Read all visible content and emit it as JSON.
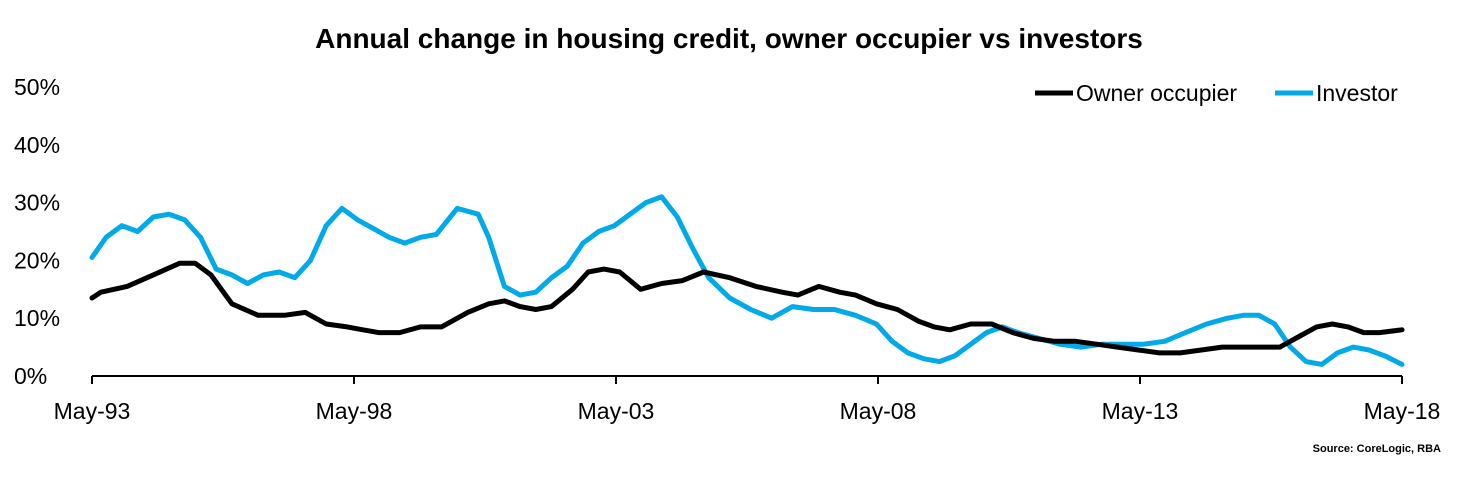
{
  "chart_data": {
    "type": "line",
    "title": "Annual change in housing credit, owner occupier vs investors",
    "source": "Source: CoreLogic, RBA",
    "xlabel": "",
    "ylabel": "",
    "y_ticks": [
      "0%",
      "10%",
      "20%",
      "30%",
      "40%",
      "50%"
    ],
    "y_tick_values": [
      0,
      10,
      20,
      30,
      40,
      50
    ],
    "ylim": [
      0,
      50
    ],
    "x_ticks": [
      "May-93",
      "May-98",
      "May-03",
      "May-08",
      "May-13",
      "May-18"
    ],
    "x_tick_values": [
      1993.33,
      1998.33,
      2003.33,
      2008.33,
      2013.33,
      2018.33
    ],
    "xlim": [
      1993.33,
      2018.33
    ],
    "grid": false,
    "legend": "top-right",
    "series": [
      {
        "name": "Owner occupier",
        "color": "#000000",
        "x": [
          1993.33,
          1993.5,
          1994.0,
          1994.5,
          1995.0,
          1995.3,
          1995.6,
          1996.0,
          1996.5,
          1997.0,
          1997.4,
          1997.8,
          1998.2,
          1998.5,
          1998.8,
          1999.2,
          1999.6,
          2000.0,
          2000.5,
          2000.9,
          2001.2,
          2001.5,
          2001.8,
          2002.1,
          2002.5,
          2002.8,
          2003.1,
          2003.4,
          2003.8,
          2004.2,
          2004.6,
          2005.0,
          2005.5,
          2006.0,
          2006.5,
          2006.8,
          2007.2,
          2007.6,
          2007.9,
          2008.3,
          2008.7,
          2009.1,
          2009.4,
          2009.7,
          2010.1,
          2010.5,
          2010.9,
          2011.3,
          2011.7,
          2012.1,
          2012.5,
          2012.9,
          2013.3,
          2013.7,
          2014.1,
          2014.5,
          2014.9,
          2015.3,
          2015.7,
          2016.0,
          2016.4,
          2016.7,
          2017.0,
          2017.3,
          2017.6,
          2017.9,
          2018.33
        ],
        "values": [
          13.5,
          14.5,
          15.5,
          17.5,
          19.5,
          19.5,
          17.5,
          12.5,
          10.5,
          10.5,
          11.0,
          9.0,
          8.5,
          8.0,
          7.5,
          7.5,
          8.5,
          8.5,
          11.0,
          12.5,
          13.0,
          12.0,
          11.5,
          12.0,
          15.0,
          18.0,
          18.5,
          18.0,
          15.0,
          16.0,
          16.5,
          18.0,
          17.0,
          15.5,
          14.5,
          14.0,
          15.5,
          14.5,
          14.0,
          12.5,
          11.5,
          9.5,
          8.5,
          8.0,
          9.0,
          9.0,
          7.5,
          6.5,
          6.0,
          6.0,
          5.5,
          5.0,
          4.5,
          4.0,
          4.0,
          4.5,
          5.0,
          5.0,
          5.0,
          5.0,
          7.0,
          8.5,
          9.0,
          8.5,
          7.5,
          7.5,
          8.0
        ]
      },
      {
        "name": "Investor",
        "color": "#00A9E8",
        "x": [
          1993.33,
          1993.6,
          1993.9,
          1994.2,
          1994.5,
          1994.8,
          1995.1,
          1995.4,
          1995.7,
          1996.0,
          1996.3,
          1996.6,
          1996.9,
          1997.2,
          1997.5,
          1997.8,
          1998.1,
          1998.4,
          1998.7,
          1999.0,
          1999.3,
          1999.6,
          1999.9,
          2000.3,
          2000.7,
          2000.9,
          2001.2,
          2001.5,
          2001.8,
          2002.1,
          2002.4,
          2002.7,
          2003.0,
          2003.3,
          2003.6,
          2003.9,
          2004.2,
          2004.5,
          2004.8,
          2005.1,
          2005.5,
          2005.9,
          2006.3,
          2006.7,
          2007.1,
          2007.5,
          2007.9,
          2008.3,
          2008.6,
          2008.9,
          2009.2,
          2009.5,
          2009.8,
          2010.1,
          2010.4,
          2010.7,
          2011.0,
          2011.4,
          2011.8,
          2012.2,
          2012.6,
          2013.0,
          2013.4,
          2013.8,
          2014.2,
          2014.6,
          2015.0,
          2015.3,
          2015.6,
          2015.9,
          2016.2,
          2016.5,
          2016.8,
          2017.1,
          2017.4,
          2017.7,
          2018.0,
          2018.33
        ],
        "values": [
          20.5,
          24.0,
          26.0,
          25.0,
          27.5,
          28.0,
          27.0,
          24.0,
          18.5,
          17.5,
          16.0,
          17.5,
          18.0,
          17.0,
          20.0,
          26.0,
          29.0,
          27.0,
          25.5,
          24.0,
          23.0,
          24.0,
          24.5,
          29.0,
          28.0,
          24.0,
          15.5,
          14.0,
          14.5,
          17.0,
          19.0,
          23.0,
          25.0,
          26.0,
          28.0,
          30.0,
          31.0,
          27.5,
          22.0,
          17.0,
          13.5,
          11.5,
          10.0,
          12.0,
          11.5,
          11.5,
          10.5,
          9.0,
          6.0,
          4.0,
          3.0,
          2.5,
          3.5,
          5.5,
          7.5,
          8.5,
          7.5,
          6.5,
          5.5,
          5.0,
          5.5,
          5.5,
          5.5,
          6.0,
          7.5,
          9.0,
          10.0,
          10.5,
          10.5,
          9.0,
          5.0,
          2.5,
          2.0,
          4.0,
          5.0,
          4.5,
          3.5,
          2.0
        ]
      }
    ]
  }
}
